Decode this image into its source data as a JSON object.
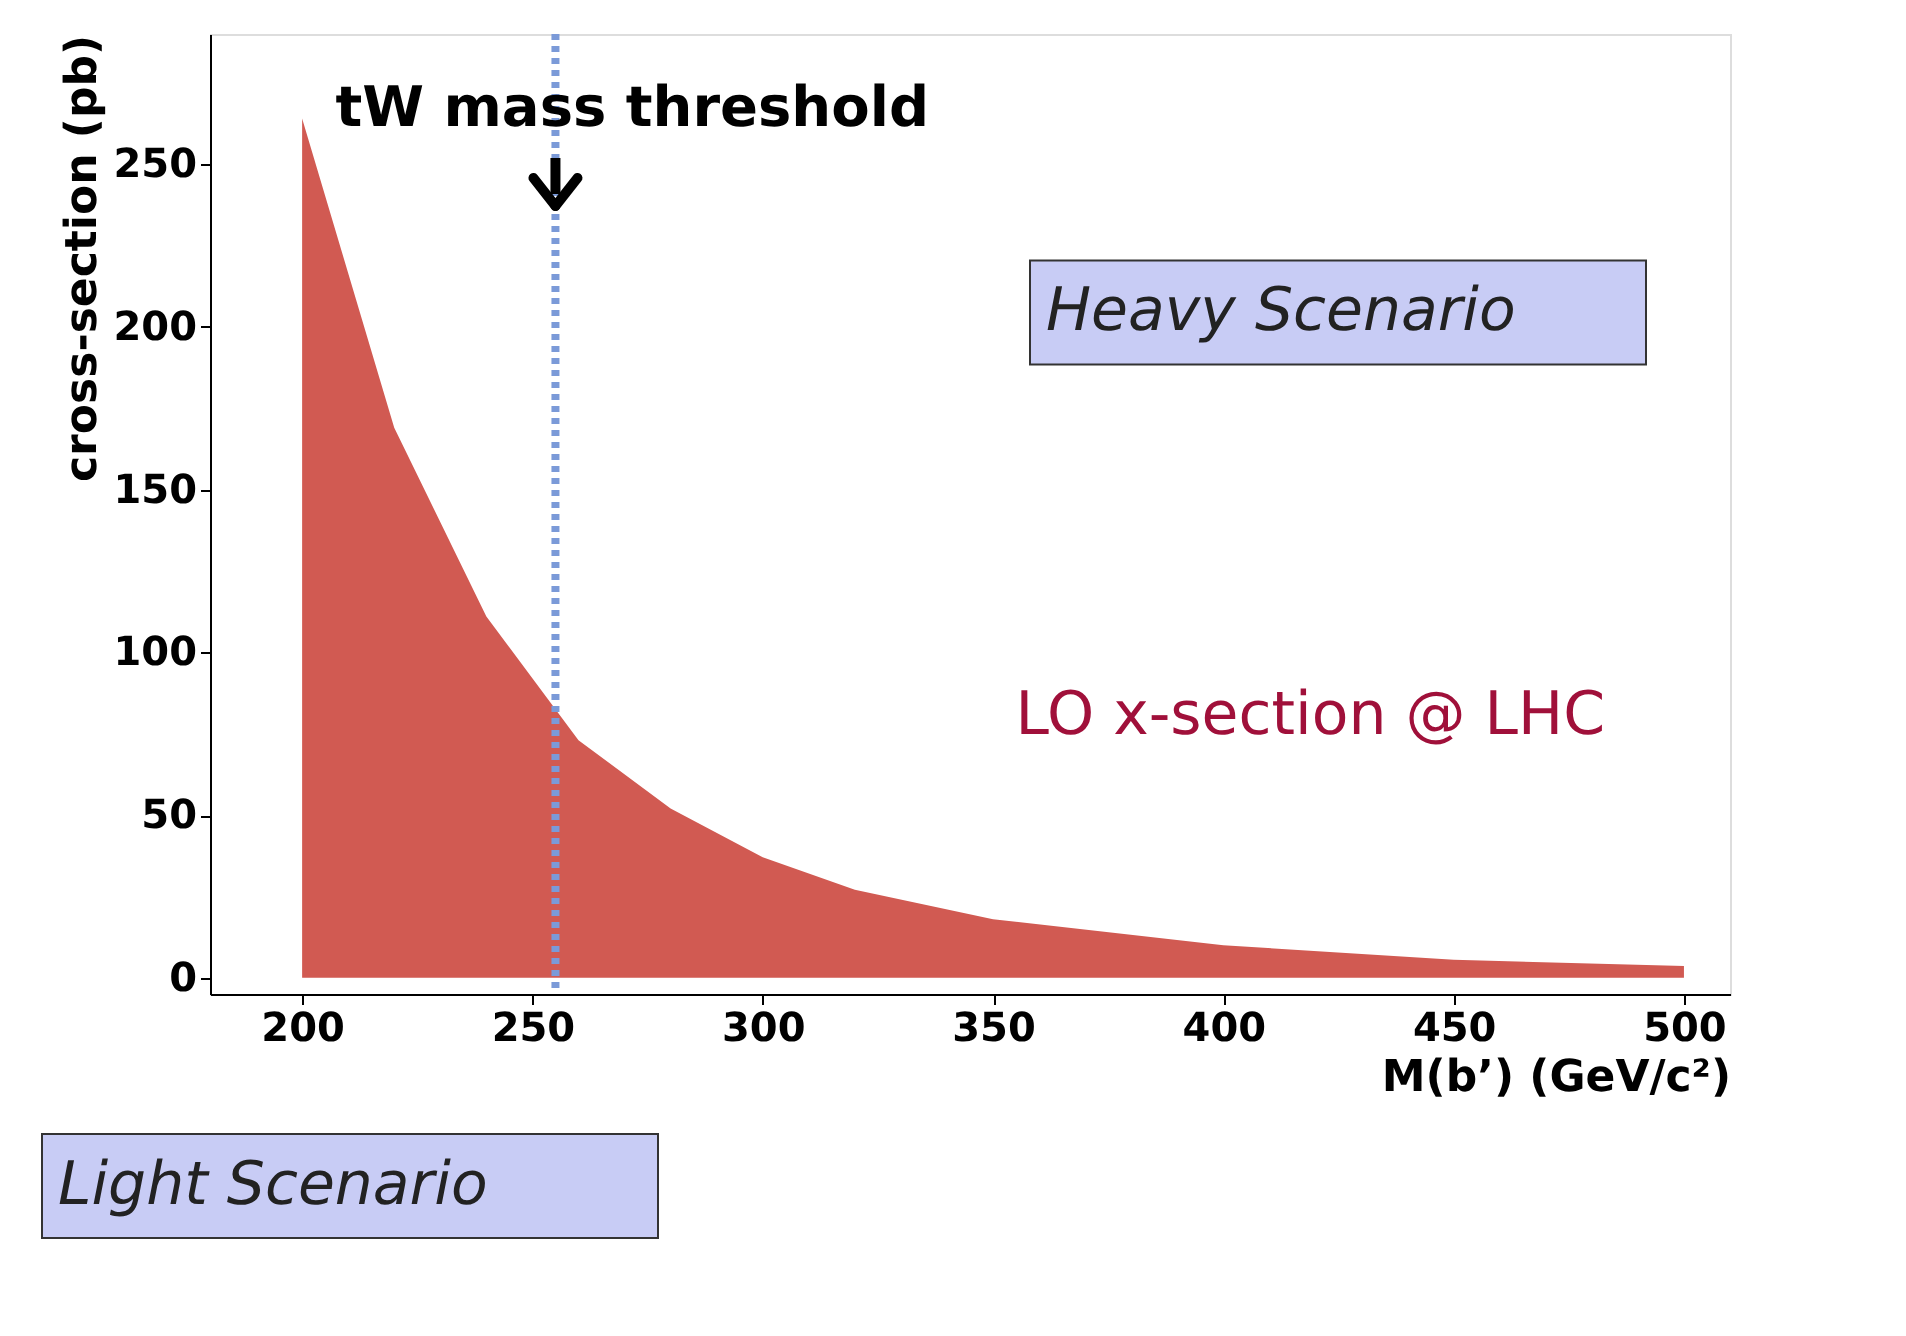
{
  "chart_data": {
    "type": "area",
    "xlabel": "M(b’) (GeV/c²)",
    "ylabel": "cross-section (pb)",
    "x": [
      200,
      220,
      240,
      260,
      280,
      300,
      320,
      350,
      400,
      450,
      500
    ],
    "series": [
      {
        "color": "#d15a52",
        "values": [
          264,
          169,
          111,
          73,
          52,
          37,
          27,
          18,
          10,
          5.5,
          3.6
        ]
      }
    ],
    "xlim": [
      180,
      510
    ],
    "ylim": [
      -5,
      290
    ],
    "xticks": [
      200,
      250,
      300,
      350,
      400,
      450,
      500
    ],
    "yticks": [
      0,
      50,
      100,
      150,
      200,
      250
    ],
    "grid": false,
    "ref_lines": [
      {
        "axis": "x",
        "value": 255,
        "label": "tW mass threshold",
        "color": "#7b9ad8",
        "line_style": "dotted"
      }
    ],
    "annotations": [
      "LO x-section @ LHC",
      "Heavy Scenario",
      "Light Scenario"
    ]
  }
}
